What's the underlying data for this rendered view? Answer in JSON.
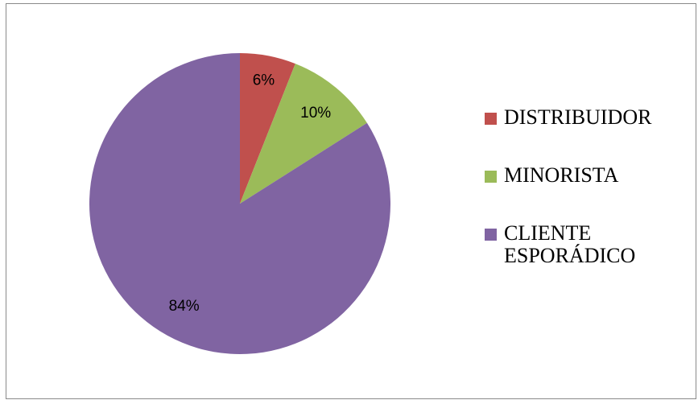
{
  "chart_data": {
    "type": "pie",
    "title": "",
    "slices": [
      {
        "label": "DISTRIBUIDOR",
        "value": 6,
        "data_label": "6%",
        "color": "#C0504D"
      },
      {
        "label": "MINORISTA",
        "value": 10,
        "data_label": "10%",
        "color": "#9BBB59"
      },
      {
        "label": "CLIENTE ESPORÁDICO",
        "value": 84,
        "data_label": "84%",
        "color": "#8064A2"
      }
    ],
    "start_angle": "12 o'clock",
    "direction": "clockwise",
    "legend_position": "right"
  }
}
